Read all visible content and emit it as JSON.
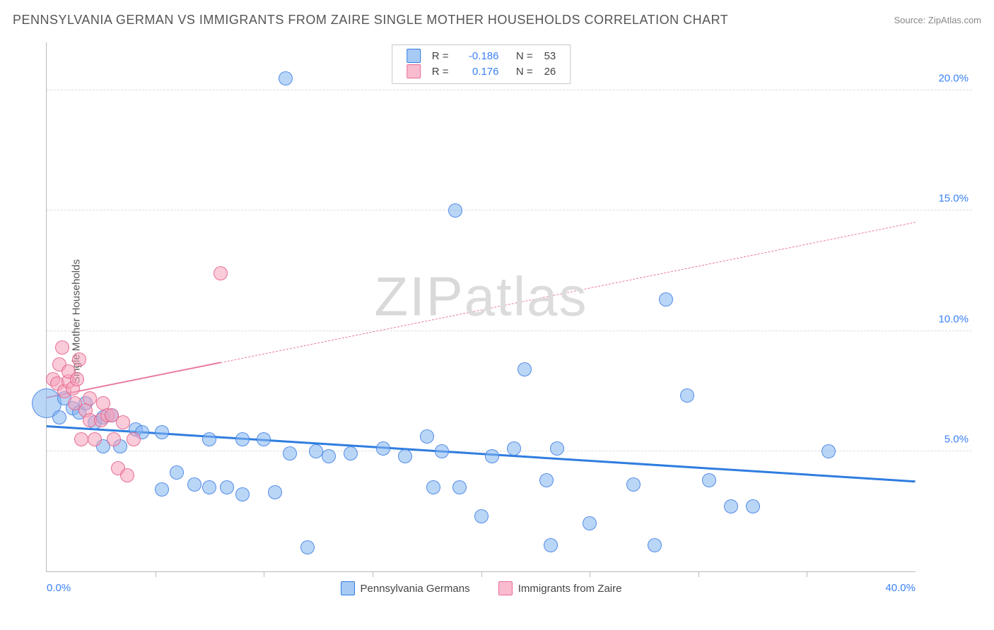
{
  "title": "PENNSYLVANIA GERMAN VS IMMIGRANTS FROM ZAIRE SINGLE MOTHER HOUSEHOLDS CORRELATION CHART",
  "source": "Source: ZipAtlas.com",
  "ylabel": "Single Mother Households",
  "watermark_zip": "ZIP",
  "watermark_atlas": "atlas",
  "type": "scatter",
  "background_color": "#ffffff",
  "grid_color": "#dddddd",
  "axis_color": "#bbbbbb",
  "xlim": [
    0,
    40
  ],
  "ylim": [
    0,
    22
  ],
  "xticks_minor": [
    5,
    10,
    15,
    20,
    25,
    30,
    35
  ],
  "xtick_labels": [
    {
      "x": 0,
      "text": "0.0%",
      "align": "left"
    },
    {
      "x": 40,
      "text": "40.0%",
      "align": "right"
    }
  ],
  "ytick_lines": [
    5,
    10,
    15,
    20
  ],
  "ytick_labels": [
    {
      "y": 5,
      "text": "5.0%"
    },
    {
      "y": 10,
      "text": "10.0%"
    },
    {
      "y": 15,
      "text": "15.0%"
    },
    {
      "y": 20,
      "text": "20.0%"
    }
  ],
  "marker_radius_default": 9,
  "series": {
    "blue": {
      "name": "Pennsylvania Germans",
      "color_fill": "rgba(130,180,240,0.55)",
      "color_stroke": "#2f7de0",
      "R": "-0.186",
      "N": "53",
      "trend": {
        "x1": 0,
        "y1": 6.0,
        "x2": 40,
        "y2": 3.7,
        "dash_after_x": null
      },
      "points": [
        {
          "x": 0.0,
          "y": 7.0,
          "r": 20
        },
        {
          "x": 0.6,
          "y": 6.4
        },
        {
          "x": 0.8,
          "y": 7.2
        },
        {
          "x": 1.2,
          "y": 6.8
        },
        {
          "x": 1.5,
          "y": 6.6
        },
        {
          "x": 1.8,
          "y": 7.0
        },
        {
          "x": 2.2,
          "y": 6.2
        },
        {
          "x": 2.6,
          "y": 6.4
        },
        {
          "x": 2.6,
          "y": 5.2
        },
        {
          "x": 3.0,
          "y": 6.5
        },
        {
          "x": 3.4,
          "y": 5.2
        },
        {
          "x": 4.1,
          "y": 5.9
        },
        {
          "x": 4.4,
          "y": 5.8
        },
        {
          "x": 5.3,
          "y": 5.8
        },
        {
          "x": 5.3,
          "y": 3.4
        },
        {
          "x": 6.0,
          "y": 4.1
        },
        {
          "x": 6.8,
          "y": 3.6
        },
        {
          "x": 7.5,
          "y": 3.5
        },
        {
          "x": 7.5,
          "y": 5.5
        },
        {
          "x": 8.3,
          "y": 3.5
        },
        {
          "x": 9.0,
          "y": 5.5
        },
        {
          "x": 9.0,
          "y": 3.2
        },
        {
          "x": 10.0,
          "y": 5.5
        },
        {
          "x": 10.5,
          "y": 3.3
        },
        {
          "x": 11.0,
          "y": 20.5
        },
        {
          "x": 11.2,
          "y": 4.9
        },
        {
          "x": 12.0,
          "y": 1.0
        },
        {
          "x": 12.4,
          "y": 5.0
        },
        {
          "x": 13.0,
          "y": 4.8
        },
        {
          "x": 14.0,
          "y": 4.9
        },
        {
          "x": 15.5,
          "y": 5.1
        },
        {
          "x": 16.5,
          "y": 4.8
        },
        {
          "x": 17.5,
          "y": 5.6
        },
        {
          "x": 17.8,
          "y": 3.5
        },
        {
          "x": 18.2,
          "y": 5.0
        },
        {
          "x": 18.8,
          "y": 15.0
        },
        {
          "x": 19.0,
          "y": 3.5
        },
        {
          "x": 20.0,
          "y": 2.3
        },
        {
          "x": 20.5,
          "y": 4.8
        },
        {
          "x": 21.5,
          "y": 5.1
        },
        {
          "x": 22.0,
          "y": 8.4
        },
        {
          "x": 23.0,
          "y": 3.8
        },
        {
          "x": 23.2,
          "y": 1.1
        },
        {
          "x": 23.5,
          "y": 5.1
        },
        {
          "x": 25.0,
          "y": 2.0
        },
        {
          "x": 27.0,
          "y": 3.6
        },
        {
          "x": 28.0,
          "y": 1.1
        },
        {
          "x": 28.5,
          "y": 11.3
        },
        {
          "x": 29.5,
          "y": 7.3
        },
        {
          "x": 30.5,
          "y": 3.8
        },
        {
          "x": 31.5,
          "y": 2.7
        },
        {
          "x": 32.5,
          "y": 2.7
        },
        {
          "x": 36.0,
          "y": 5.0
        }
      ]
    },
    "pink": {
      "name": "Immigrants from Zaire",
      "color_fill": "rgba(245,160,185,0.55)",
      "color_stroke": "#ea6a98",
      "R": "0.176",
      "N": "26",
      "trend": {
        "x1": 0,
        "y1": 7.2,
        "x2": 40,
        "y2": 14.5,
        "dash_after_x": 8
      },
      "points": [
        {
          "x": 0.3,
          "y": 8.0
        },
        {
          "x": 0.5,
          "y": 7.8
        },
        {
          "x": 0.6,
          "y": 8.6
        },
        {
          "x": 0.7,
          "y": 9.3
        },
        {
          "x": 0.8,
          "y": 7.5
        },
        {
          "x": 1.0,
          "y": 7.9
        },
        {
          "x": 1.0,
          "y": 8.3
        },
        {
          "x": 1.2,
          "y": 7.6
        },
        {
          "x": 1.3,
          "y": 7.0
        },
        {
          "x": 1.4,
          "y": 8.0
        },
        {
          "x": 1.5,
          "y": 8.8
        },
        {
          "x": 1.6,
          "y": 5.5
        },
        {
          "x": 1.8,
          "y": 6.7
        },
        {
          "x": 2.0,
          "y": 6.3
        },
        {
          "x": 2.0,
          "y": 7.2
        },
        {
          "x": 2.2,
          "y": 5.5
        },
        {
          "x": 2.5,
          "y": 6.3
        },
        {
          "x": 2.6,
          "y": 7.0
        },
        {
          "x": 2.8,
          "y": 6.5
        },
        {
          "x": 3.0,
          "y": 6.5
        },
        {
          "x": 3.1,
          "y": 5.5
        },
        {
          "x": 3.3,
          "y": 4.3
        },
        {
          "x": 3.5,
          "y": 6.2
        },
        {
          "x": 3.7,
          "y": 4.0
        },
        {
          "x": 4.0,
          "y": 5.5
        },
        {
          "x": 8.0,
          "y": 12.4
        }
      ]
    }
  },
  "legend_bottom": [
    {
      "series": "blue"
    },
    {
      "series": "pink"
    }
  ]
}
